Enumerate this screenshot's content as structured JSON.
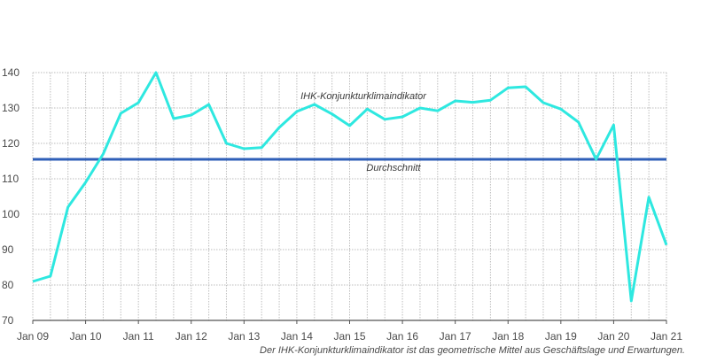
{
  "colors": {
    "indicator": "#2ee8e0",
    "average": "#2f5fb8",
    "grid": "#bdbdbd",
    "axis": "#555555"
  },
  "footnote": "Der IHK-Konjunkturklimaindikator ist das geometrische Mittel aus Geschäftslage und Erwartungen.",
  "chart_data": {
    "type": "line",
    "y_ticks": [
      "140",
      "130",
      "120",
      "110",
      "100",
      "90",
      "80",
      "70"
    ],
    "x_ticks": [
      "Jan 09",
      "Jan 10",
      "Jan 11",
      "Jan 12",
      "Jan 13",
      "Jan 14",
      "Jan 15",
      "Jan 16",
      "Jan 17",
      "Jan 18",
      "Jan 19",
      "Jan 20",
      "Jan 21"
    ],
    "ylim": [
      70,
      140
    ],
    "grid": true,
    "series": [
      {
        "name": "IHK-Konjunkturklimaindikator",
        "values": [
          81,
          82.5,
          102,
          109,
          117,
          128.5,
          131.5,
          140,
          127,
          128,
          131,
          120,
          118.5,
          118.8,
          124.5,
          129,
          131,
          128.3,
          125,
          129.7,
          126.8,
          127.5,
          130,
          129.2,
          132,
          131.6,
          132.2,
          135.7,
          136,
          131.5,
          129.7,
          126,
          115.5,
          125.2,
          75.5,
          104.8,
          91.3
        ]
      },
      {
        "name": "Durchschnitt",
        "values": [
          115.5,
          115.5
        ]
      }
    ]
  }
}
